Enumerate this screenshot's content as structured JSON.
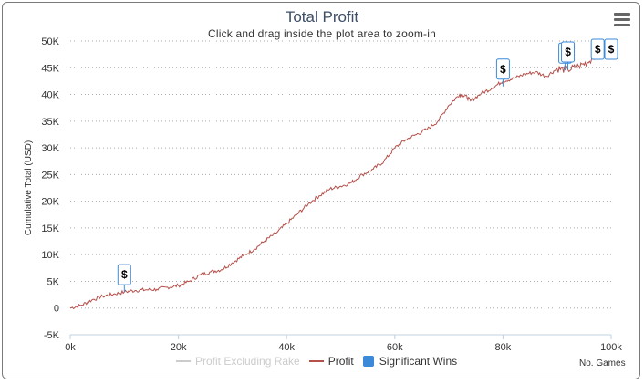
{
  "chart_data": {
    "type": "line",
    "title": "Total Profit",
    "subtitle": "Click and drag inside the plot area to zoom-in",
    "xlabel": "No. Games",
    "ylabel": "Cumulative Total (USD)",
    "xlim": [
      0,
      100000
    ],
    "ylim": [
      -5000,
      50000
    ],
    "x_ticks": [
      0,
      20000,
      40000,
      60000,
      80000,
      100000
    ],
    "x_tick_labels": [
      "0k",
      "20k",
      "40k",
      "60k",
      "80k",
      "100k"
    ],
    "y_ticks": [
      -5000,
      0,
      5000,
      10000,
      15000,
      20000,
      25000,
      30000,
      35000,
      40000,
      45000,
      50000
    ],
    "y_tick_labels": [
      "-5K",
      "0",
      "5K",
      "10K",
      "15K",
      "20K",
      "25K",
      "30K",
      "35K",
      "40K",
      "45K",
      "50K"
    ],
    "grid": "horizontal-dotted",
    "legend_position": "bottom",
    "series": [
      {
        "name": "Profit Excluding Rake",
        "color": "#d8d8d8",
        "hidden": true,
        "x": [],
        "y": []
      },
      {
        "name": "Profit",
        "color": "#b5504b",
        "x": [
          0,
          2000,
          4000,
          6000,
          8000,
          10000,
          12000,
          14000,
          16000,
          18000,
          20000,
          22000,
          24000,
          26000,
          28000,
          30000,
          32000,
          34000,
          36000,
          38000,
          40000,
          42000,
          44000,
          46000,
          48000,
          50000,
          52000,
          54000,
          56000,
          58000,
          60000,
          62000,
          64000,
          66000,
          68000,
          70000,
          72000,
          73000,
          74000,
          76000,
          78000,
          80000,
          82000,
          84000,
          86000,
          88000,
          90000,
          92000,
          94000,
          96000,
          98000,
          99000,
          100000,
          101000
        ],
        "y": [
          0,
          500,
          1500,
          2200,
          2600,
          3000,
          3300,
          3400,
          3500,
          3900,
          4200,
          5000,
          6200,
          6800,
          7200,
          8500,
          9800,
          11000,
          12600,
          14000,
          15800,
          17600,
          19500,
          21000,
          22300,
          22800,
          23500,
          25000,
          26000,
          27500,
          30000,
          31500,
          32500,
          33500,
          35000,
          38000,
          40000,
          39800,
          38800,
          40200,
          41200,
          42500,
          43000,
          43800,
          44200,
          43400,
          44800,
          44600,
          45300,
          46200,
          48800,
          47200,
          48500,
          47500
        ]
      },
      {
        "name": "Significant Wins",
        "color": "#3b8ad9",
        "marker_label": "$",
        "x": [
          10000,
          80000,
          91500,
          92000,
          97500,
          100000
        ],
        "y": [
          3000,
          41500,
          44500,
          44700,
          47800,
          48200
        ]
      }
    ]
  },
  "legend": {
    "items": [
      {
        "label": "Profit Excluding Rake",
        "color": "#cccccc"
      },
      {
        "label": "Profit",
        "color": "#b5504b"
      },
      {
        "label": "Significant Wins",
        "color": "#3b8ad9"
      }
    ]
  },
  "menu": {
    "icon": "hamburger-menu-icon"
  }
}
